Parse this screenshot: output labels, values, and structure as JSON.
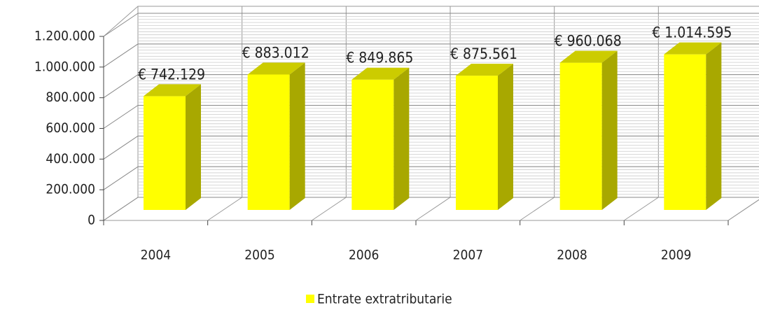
{
  "chart_data": {
    "type": "bar3d",
    "categories": [
      "2004",
      "2005",
      "2006",
      "2007",
      "2008",
      "2009"
    ],
    "series": [
      {
        "name": "Entrate extratributarie",
        "color": "#ffff00",
        "values": [
          742129,
          883012,
          849865,
          875561,
          960068,
          1014595
        ],
        "value_labels": [
          "€ 742.129",
          "€ 883.012",
          "€ 849.865",
          "€ 875.561",
          "€ 960.068",
          "€ 1.014.595"
        ]
      }
    ],
    "ylim": [
      0,
      1200000
    ],
    "yticks": [
      0,
      {
        "value": 200000,
        "label": "200.000"
      },
      {
        "value": 400000,
        "label": "400.000"
      },
      {
        "value": 600000,
        "label": "600.000"
      },
      {
        "value": 800000,
        "label": "800.000"
      },
      {
        "value": 1000000,
        "label": "1.000.000"
      },
      {
        "value": 1200000,
        "label": "1.200.000"
      }
    ],
    "grid": true,
    "legend": "bottom"
  }
}
